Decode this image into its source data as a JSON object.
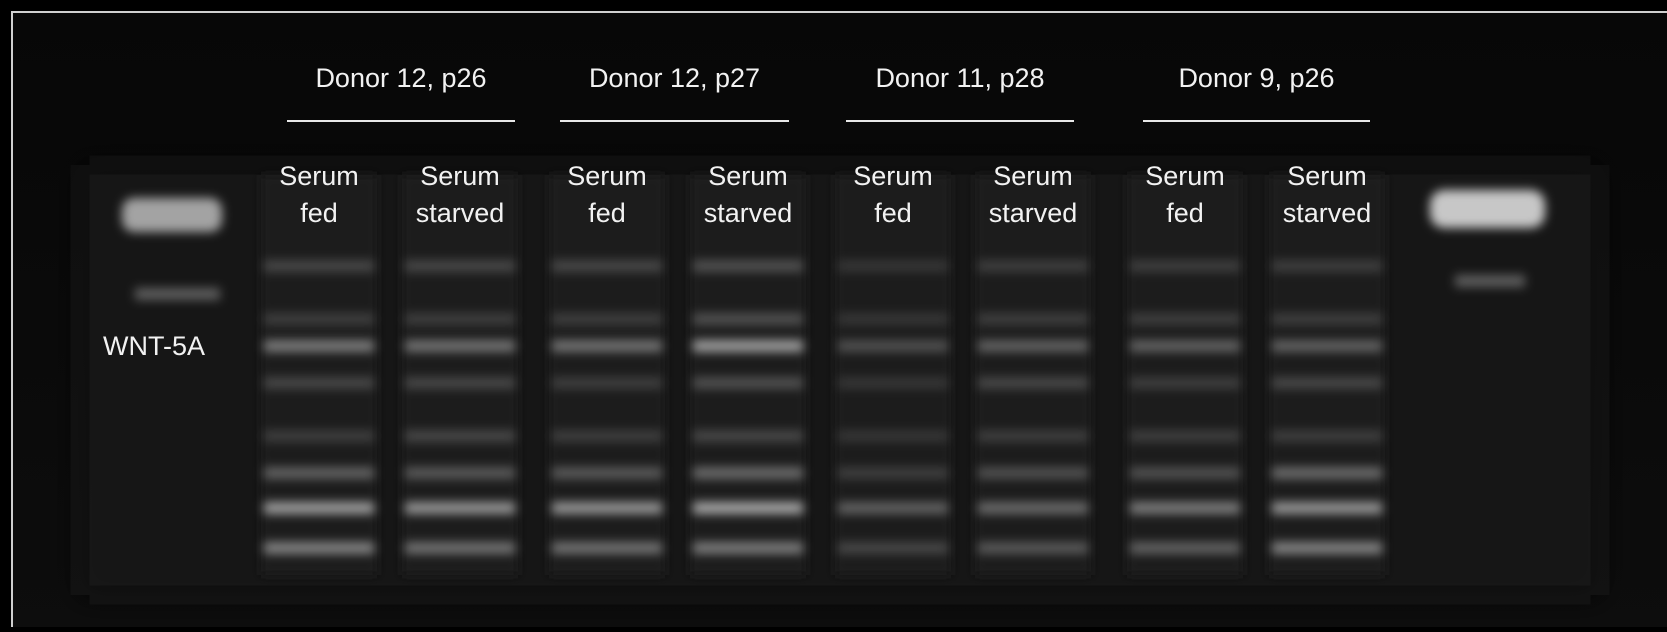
{
  "marker_label": "WNT-5A",
  "groups": [
    {
      "title": "Donor 12, p26",
      "lanes": [
        [
          "Serum",
          "fed"
        ],
        [
          "Serum",
          "starved"
        ]
      ]
    },
    {
      "title": "Donor 12, p27",
      "lanes": [
        [
          "Serum",
          "fed"
        ],
        [
          "Serum",
          "starved"
        ]
      ]
    },
    {
      "title": "Donor 11, p28",
      "lanes": [
        [
          "Serum",
          "fed"
        ],
        [
          "Serum",
          "starved"
        ]
      ]
    },
    {
      "title": "Donor 9, p26",
      "lanes": [
        [
          "Serum",
          "fed"
        ],
        [
          "Serum",
          "starved"
        ]
      ]
    }
  ]
}
